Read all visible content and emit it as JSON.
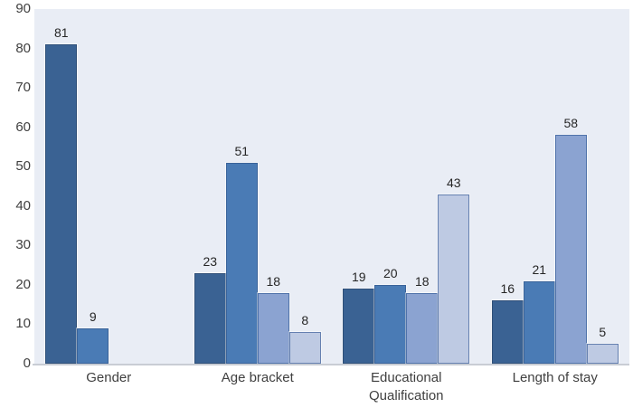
{
  "chart_data": {
    "type": "bar",
    "title": "",
    "xlabel": "",
    "ylabel": "",
    "categories": [
      "Gender",
      "Age bracket",
      "Educational Qualification",
      "Length of stay"
    ],
    "series": [
      {
        "values": [
          81,
          23,
          19,
          16
        ],
        "fill": "#3a6293",
        "border": "#2f4f78"
      },
      {
        "values": [
          9,
          51,
          20,
          21
        ],
        "fill": "#4a7bb5",
        "border": "#3a639a"
      },
      {
        "values": [
          null,
          18,
          18,
          58
        ],
        "fill": "#8ba3d1",
        "border": "#4f72aa"
      },
      {
        "values": [
          null,
          8,
          43,
          5
        ],
        "fill": "#becae3",
        "border": "#6580b0"
      }
    ],
    "data_labels_shown": true,
    "y_ticks": [
      0,
      10,
      20,
      30,
      40,
      50,
      60,
      70,
      80,
      90
    ],
    "ylim": [
      0,
      90
    ],
    "grid": false,
    "legend": "none"
  },
  "style": {
    "page_bg": "#ffffff",
    "plot_bg": "#e9edf5",
    "axis_line_color": "#c9cdd4",
    "tick_label_color": "#404040",
    "value_label_color": "#262626"
  }
}
